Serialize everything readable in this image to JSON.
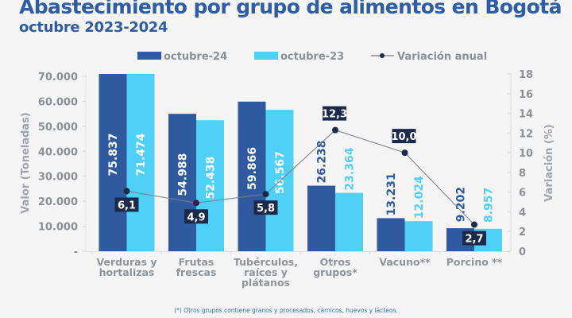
{
  "chart_data": {
    "type": "bar",
    "title": "Abastecimiento por grupo de alimentos en Bogotá",
    "subtitle": "octubre 2023-2024",
    "categories": [
      [
        "Verduras y",
        "hortalizas"
      ],
      [
        "Frutas",
        "frescas"
      ],
      [
        "Tubérculos,",
        "raíces y",
        "plátanos"
      ],
      [
        "Otros",
        "grupos*"
      ],
      [
        "Vacuno**"
      ],
      [
        "Porcino **"
      ]
    ],
    "series": [
      {
        "name": "octubre-24",
        "type": "bar",
        "axis": "left",
        "color": "#2f5aa0",
        "values": [
          75837,
          54988,
          59866,
          26238,
          13231,
          9202
        ],
        "labels": [
          "75.837",
          "54.988",
          "59.866",
          "26.238",
          "13.231",
          "9.202"
        ]
      },
      {
        "name": "octubre-23",
        "type": "bar",
        "axis": "left",
        "color": "#4fd0f8",
        "values": [
          71474,
          52438,
          56567,
          23364,
          12024,
          8957
        ],
        "labels": [
          "71.474",
          "52.438",
          "56.567",
          "23.364",
          "12.024",
          "8.957"
        ]
      },
      {
        "name": "Variación anual",
        "type": "line",
        "axis": "right",
        "color": "#1b2a4a",
        "values": [
          6.1,
          4.9,
          5.8,
          12.3,
          10.0,
          2.7
        ],
        "labels": [
          "6,1",
          "4,9",
          "5,8",
          "12,3",
          "10,0",
          "2,7"
        ]
      }
    ],
    "ylabel": "Valor (Toneladas)",
    "ylim": [
      0,
      70000
    ],
    "yticks": [
      0,
      10000,
      20000,
      30000,
      40000,
      50000,
      60000,
      70000
    ],
    "ytick_labels": [
      "-",
      "10.000",
      "20.000",
      "30.000",
      "40.000",
      "50.000",
      "60.000",
      "70.000"
    ],
    "y2label": "Variación (%)",
    "y2lim": [
      0,
      18
    ],
    "y2ticks": [
      0,
      2,
      4,
      6,
      8,
      10,
      12,
      14,
      16,
      18
    ],
    "y2tick_labels": [
      "0",
      "2",
      "4",
      "6",
      "8",
      "10",
      "12",
      "14",
      "16",
      "18"
    ],
    "legend": "top-center",
    "grid": false,
    "footnote": "(*) Otros grupos contiene granos y procesados, cárnicos, huevos y lácteos."
  }
}
